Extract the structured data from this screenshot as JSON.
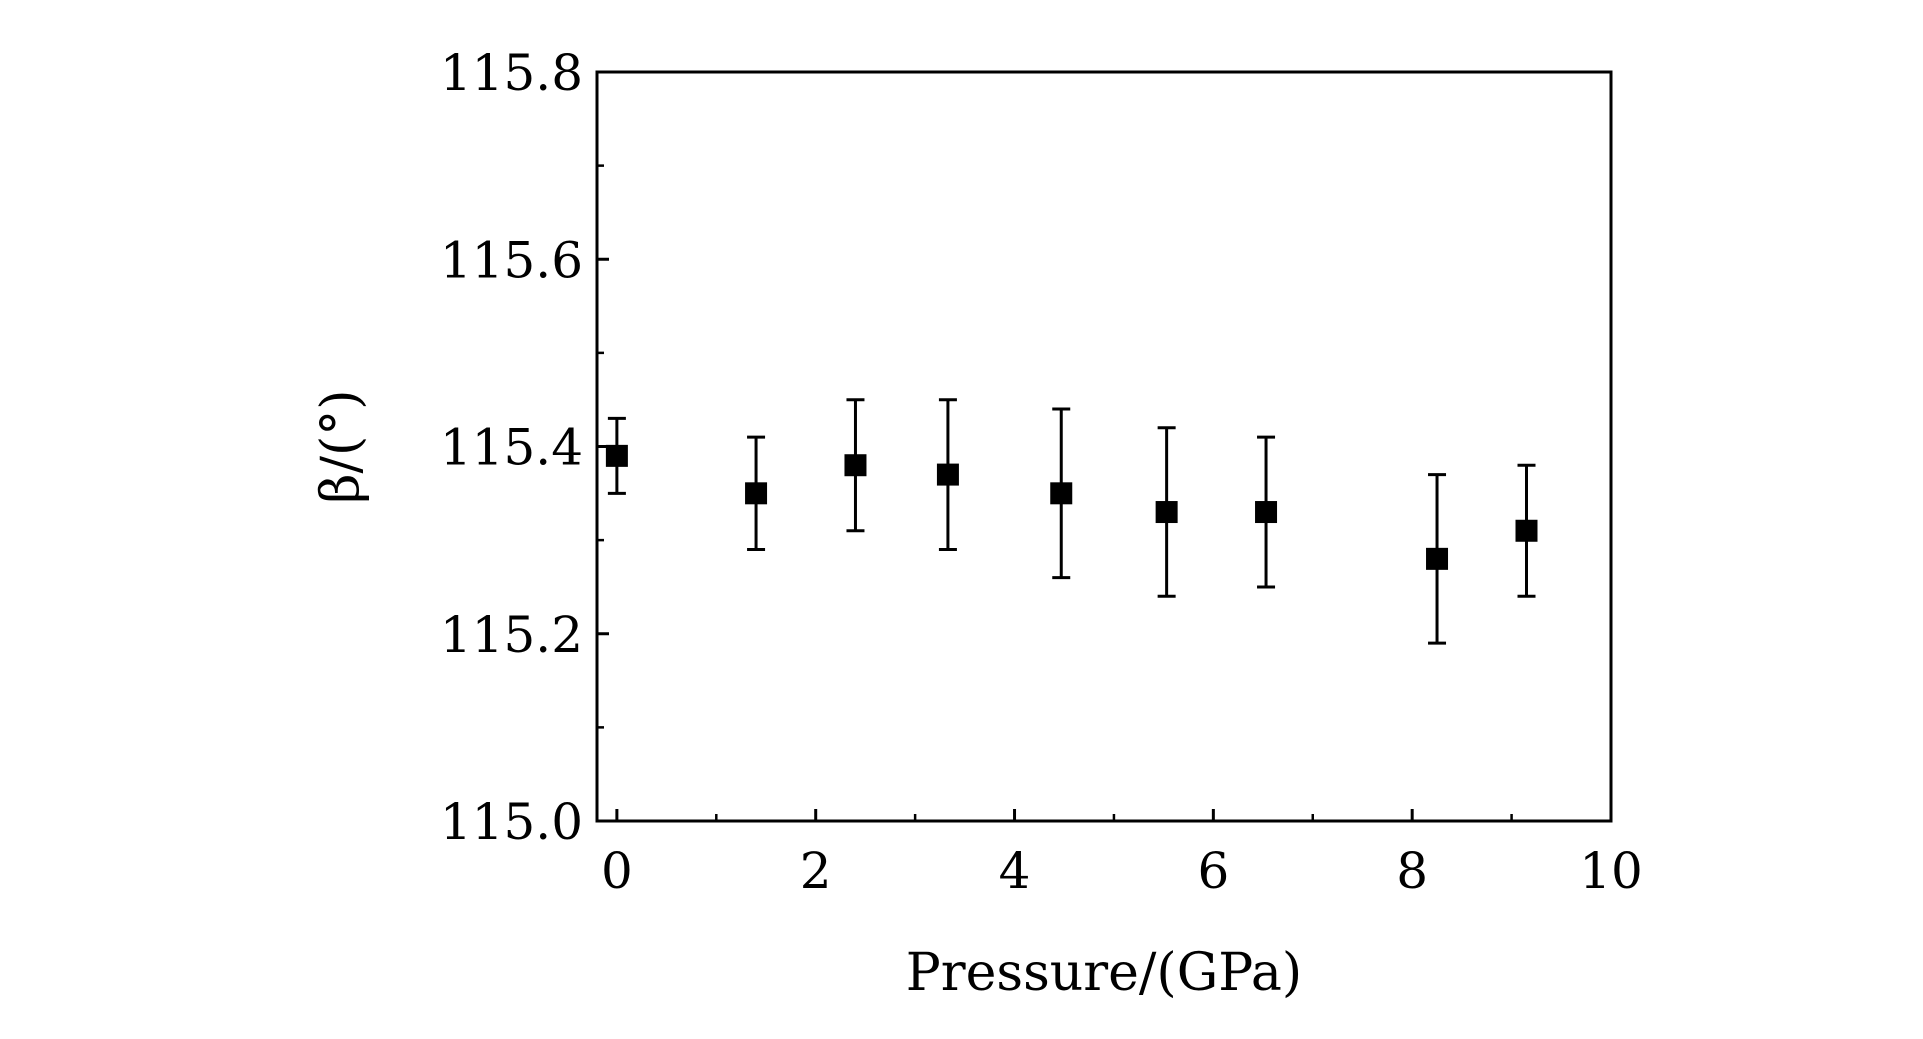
{
  "chart_data": {
    "type": "scatter",
    "title": "",
    "xlabel": "Pressure/(GPa)",
    "ylabel": "β/(°)",
    "xlim": [
      -0.2,
      10
    ],
    "ylim": [
      115.0,
      115.8
    ],
    "x_ticks": [
      0,
      2,
      4,
      6,
      8,
      10
    ],
    "x_tick_labels": [
      "0",
      "2",
      "4",
      "6",
      "8",
      "10"
    ],
    "y_ticks": [
      115.0,
      115.2,
      115.4,
      115.6,
      115.8
    ],
    "y_tick_labels": [
      "115.0",
      "115.2",
      "115.4",
      "115.6",
      "115.8"
    ],
    "grid": false,
    "marker": "square",
    "series": [
      {
        "points": [
          {
            "x": 0.0,
            "y": 115.39,
            "err_low": 115.35,
            "err_high": 115.43
          },
          {
            "x": 1.4,
            "y": 115.35,
            "err_low": 115.29,
            "err_high": 115.41
          },
          {
            "x": 2.4,
            "y": 115.38,
            "err_low": 115.31,
            "err_high": 115.45
          },
          {
            "x": 3.33,
            "y": 115.37,
            "err_low": 115.29,
            "err_high": 115.45
          },
          {
            "x": 4.47,
            "y": 115.35,
            "err_low": 115.26,
            "err_high": 115.44
          },
          {
            "x": 5.53,
            "y": 115.33,
            "err_low": 115.24,
            "err_high": 115.42
          },
          {
            "x": 6.53,
            "y": 115.33,
            "err_low": 115.25,
            "err_high": 115.41
          },
          {
            "x": 8.25,
            "y": 115.28,
            "err_low": 115.19,
            "err_high": 115.37
          },
          {
            "x": 9.15,
            "y": 115.31,
            "err_low": 115.24,
            "err_high": 115.38
          }
        ]
      }
    ]
  }
}
